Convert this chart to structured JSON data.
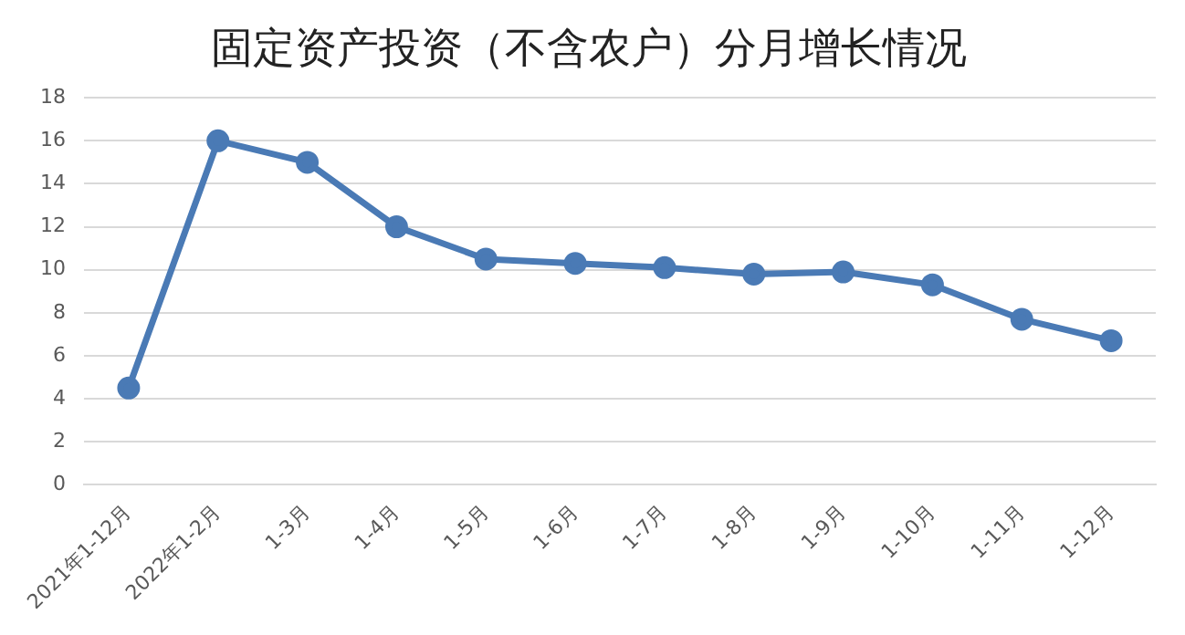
{
  "chart_data": {
    "type": "line",
    "title": "固定资产投资（不含农户）分月增长情况",
    "categories": [
      "2021年1-12月",
      "2022年1-2月",
      "1-3月",
      "1-4月",
      "1-5月",
      "1-6月",
      "1-7月",
      "1-8月",
      "1-9月",
      "1-10月",
      "1-11月",
      "1-12月"
    ],
    "series": [
      {
        "color": "#4a7ab5",
        "values": [
          4.5,
          16.0,
          15.0,
          12.0,
          10.5,
          10.3,
          10.1,
          9.8,
          9.9,
          9.3,
          7.7,
          6.7
        ]
      }
    ],
    "ylim": [
      0,
      18
    ],
    "yticks": [
      0,
      2,
      4,
      6,
      8,
      10,
      12,
      14,
      16,
      18
    ],
    "grid": "y",
    "legend": false,
    "marker": "circle",
    "line_style": "solid"
  }
}
